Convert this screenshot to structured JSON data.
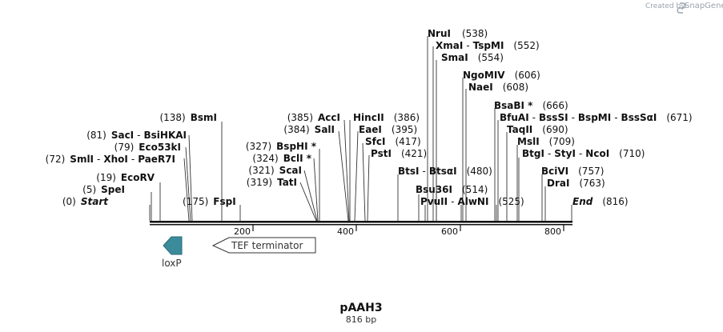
{
  "credit": "Created by",
  "credit_brand": "SnapGene",
  "title": "pAAH3",
  "subtitle": "816 bp",
  "axis": {
    "ticks": [
      "200",
      "400",
      "600",
      "800"
    ]
  },
  "features": {
    "loxp": "loxP",
    "tef": "TEF terminator"
  },
  "sites": {
    "start": {
      "name": "Start",
      "pos": "(0)"
    },
    "end": {
      "name": "End",
      "pos": "(816)"
    },
    "spei": {
      "name": "SpeI",
      "pos": "(5)"
    },
    "ecorv": {
      "name": "EcoRV",
      "pos": "(19)"
    },
    "smli": {
      "name": "SmlI",
      "pos": "(72)"
    },
    "xhoi": "XhoI",
    "paer7i": "PaeR7I",
    "eco53ki": {
      "name": "Eco53kI",
      "pos": "(79)"
    },
    "saci": {
      "name": "SacI",
      "pos": "(81)"
    },
    "bsihkai": "BsiHKAI",
    "bsmi": {
      "name": "BsmI",
      "pos": "(138)"
    },
    "fspi": {
      "name": "FspI",
      "pos": "(175)"
    },
    "tati": {
      "name": "TatI",
      "pos": "(319)"
    },
    "scai": {
      "name": "ScaI",
      "pos": "(321)"
    },
    "bcli": {
      "name": "BclI *",
      "pos": "(324)"
    },
    "bsphi": {
      "name": "BspHI *",
      "pos": "(327)"
    },
    "sali": {
      "name": "SalI",
      "pos": "(384)"
    },
    "acci": {
      "name": "AccI",
      "pos": "(385)"
    },
    "hincii": {
      "name": "HincII",
      "pos": "(386)"
    },
    "eaei": {
      "name": "EaeI",
      "pos": "(395)"
    },
    "sfci": {
      "name": "SfcI",
      "pos": "(417)"
    },
    "psti": {
      "name": "PstI",
      "pos": "(421)"
    },
    "btsi": "BtsI",
    "btsai": {
      "name": "BtsαI",
      "pos": "(480)"
    },
    "bsu36i": {
      "name": "Bsu36I",
      "pos": "(514)"
    },
    "pvuii": "PvuII",
    "alwni": {
      "name": "AlwNI",
      "pos": "(525)"
    },
    "nrui": {
      "name": "NruI",
      "pos": "(538)"
    },
    "xmai": "XmaI",
    "tspmi": {
      "name": "TspMI",
      "pos": "(552)"
    },
    "smai": {
      "name": "SmaI",
      "pos": "(554)"
    },
    "ngomiv": {
      "name": "NgoMIV",
      "pos": "(606)"
    },
    "naei": {
      "name": "NaeI",
      "pos": "(608)"
    },
    "bsabi": {
      "name": "BsaBI *",
      "pos": "(666)"
    },
    "bfuai": "BfuAI",
    "bsssi": "BssSI",
    "bspmi": "BspMI",
    "bsssai": {
      "name": "BssSαI",
      "pos": "(671)"
    },
    "taqii": {
      "name": "TaqII",
      "pos": "(690)"
    },
    "msli": {
      "name": "MslI",
      "pos": "(709)"
    },
    "btgi": "BtgI",
    "styi": "StyI",
    "ncoi": {
      "name": "NcoI",
      "pos": "(710)"
    },
    "bcivi": {
      "name": "BciVI",
      "pos": "(757)"
    },
    "drai": {
      "name": "DraI",
      "pos": "(763)"
    }
  }
}
